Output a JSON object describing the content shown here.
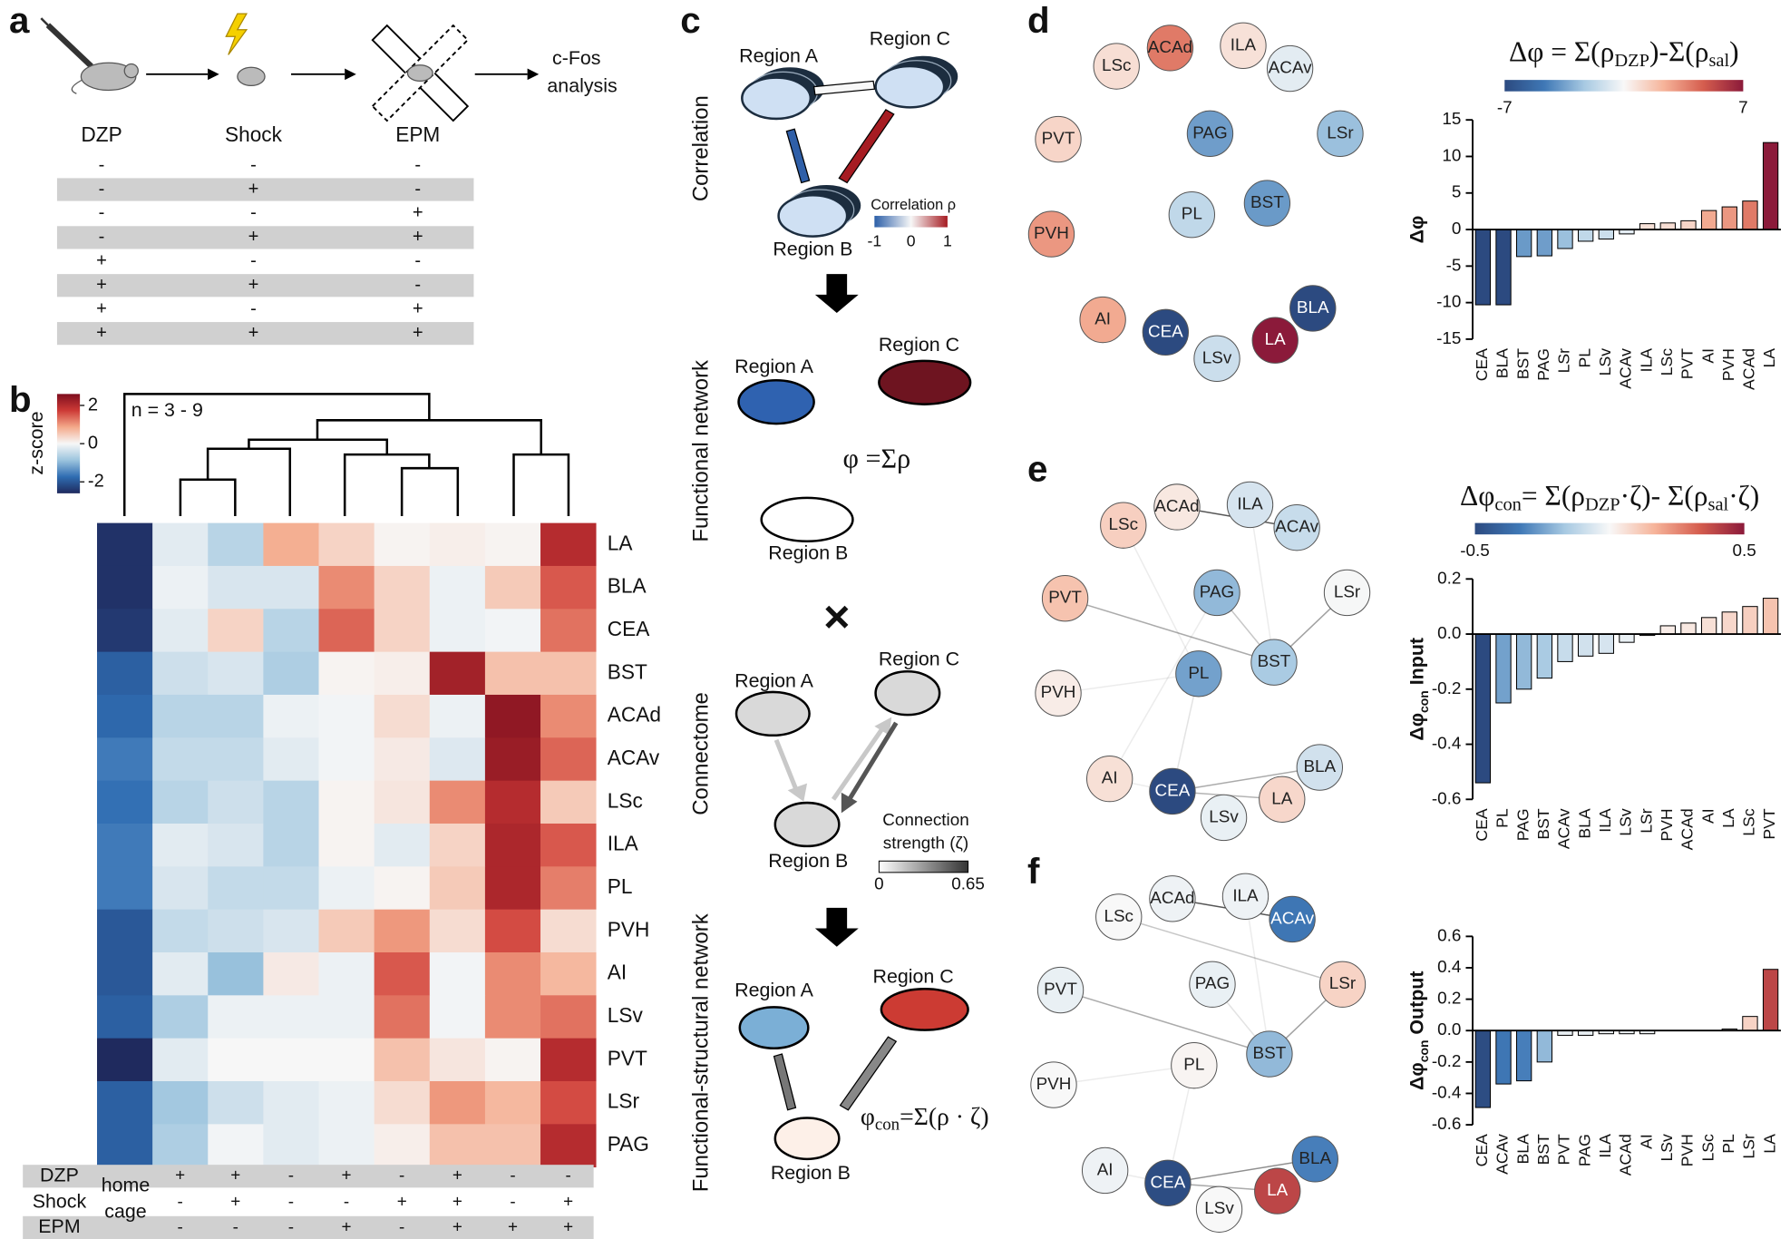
{
  "panel_labels": [
    "a",
    "b",
    "c",
    "d",
    "e",
    "f"
  ],
  "panel_a": {
    "steps": [
      "c-Fos",
      "analysis"
    ],
    "header": [
      "DZP",
      "Shock",
      "EPM"
    ],
    "rows": [
      [
        "-",
        "-",
        "-"
      ],
      [
        "-",
        "+",
        "-"
      ],
      [
        "-",
        "-",
        "+"
      ],
      [
        "-",
        "+",
        "+"
      ],
      [
        "+",
        "-",
        "-"
      ],
      [
        "+",
        "+",
        "-"
      ],
      [
        "+",
        "-",
        "+"
      ],
      [
        "+",
        "+",
        "+"
      ]
    ]
  },
  "panel_c": {
    "section_labels": [
      "Correlation",
      "Functional network",
      "Connectome",
      "Functional-structural network"
    ],
    "region_labels": [
      "Region A",
      "Region B",
      "Region C"
    ],
    "corr_label": "Correlation ρ",
    "corr_ticks": [
      -1,
      0,
      1
    ],
    "phi_formula": "φ =Σρ",
    "operator": "×",
    "strength_label": [
      "Connection",
      "strength (ζ)"
    ],
    "strength_ticks": [
      0,
      0.65
    ],
    "phicon_formula": [
      "φ",
      "con",
      "=Σ(ρ · ζ)"
    ]
  },
  "chart_data": [
    {
      "type": "heatmap",
      "annotation": "n = 3 - 9",
      "colorbar_label": "z-score",
      "zlim": [
        -2.6,
        2.6
      ],
      "zticks": [
        -2,
        0,
        2
      ],
      "colormap": [
        "#1f2a5e",
        "#2f6db2",
        "#9cc4de",
        "#f7f7f7",
        "#f4a98a",
        "#cd3a36",
        "#7e0e1e"
      ],
      "rows": [
        "LA",
        "BLA",
        "CEA",
        "BST",
        "ACAd",
        "ACAv",
        "LSc",
        "ILA",
        "PL",
        "PVH",
        "AI",
        "LSv",
        "PVT",
        "LSr",
        "PAG"
      ],
      "values": [
        [
          -2.5,
          -0.2,
          -0.6,
          0.8,
          0.4,
          0.05,
          0.1,
          0.05,
          2.0
        ],
        [
          -2.5,
          -0.1,
          -0.3,
          -0.3,
          1.1,
          0.4,
          -0.1,
          0.5,
          1.5
        ],
        [
          -2.4,
          -0.2,
          0.4,
          -0.6,
          1.4,
          0.4,
          -0.1,
          -0.05,
          1.3
        ],
        [
          -1.9,
          -0.4,
          -0.3,
          -0.7,
          0.05,
          0.1,
          2.2,
          0.6,
          0.6
        ],
        [
          -1.8,
          -0.6,
          -0.6,
          -0.1,
          -0.05,
          0.3,
          -0.1,
          2.4,
          1.1
        ],
        [
          -1.6,
          -0.5,
          -0.5,
          -0.2,
          -0.05,
          0.15,
          -0.25,
          2.3,
          1.4
        ],
        [
          -1.7,
          -0.6,
          -0.4,
          -0.6,
          0.05,
          0.2,
          1.1,
          2.0,
          0.5
        ],
        [
          -1.6,
          -0.2,
          -0.3,
          -0.6,
          0.05,
          -0.2,
          0.4,
          2.1,
          1.5
        ],
        [
          -1.6,
          -0.3,
          -0.5,
          -0.5,
          -0.1,
          0.05,
          0.5,
          2.1,
          1.2
        ],
        [
          -2.0,
          -0.5,
          -0.4,
          -0.3,
          0.5,
          1.0,
          0.3,
          1.6,
          0.3
        ],
        [
          -2.0,
          -0.2,
          -0.9,
          0.15,
          -0.1,
          1.5,
          -0.05,
          1.1,
          0.7
        ],
        [
          -1.9,
          -0.7,
          -0.1,
          -0.1,
          -0.1,
          1.3,
          -0.05,
          1.1,
          1.3
        ],
        [
          -2.6,
          -0.2,
          0,
          0,
          0,
          0.6,
          0.2,
          0.05,
          2.0
        ],
        [
          -1.9,
          -0.8,
          -0.4,
          -0.2,
          -0.1,
          0.3,
          1.0,
          0.7,
          1.6
        ],
        [
          -1.9,
          -0.7,
          -0.05,
          -0.2,
          -0.1,
          0.1,
          0.6,
          0.6,
          2.0
        ]
      ],
      "condition_names": [
        "DZP",
        "Shock",
        "EPM"
      ],
      "control": [
        "home",
        "cage"
      ],
      "conditions": [
        [
          "+",
          "+",
          "-",
          "+",
          "-",
          "+",
          "-",
          "-"
        ],
        [
          "-",
          "+",
          "-",
          "-",
          "+",
          "+",
          "-",
          "+"
        ],
        [
          "-",
          "-",
          "-",
          "+",
          "-",
          "+",
          "+",
          "+"
        ]
      ]
    },
    {
      "type": "bar",
      "title_parts": [
        "Δφ = Σ(ρ",
        "DZP",
        ")-Σ(ρ",
        "sal",
        ")"
      ],
      "ylabel_parts": [
        "Δφ"
      ],
      "categories": [
        "CEA",
        "BLA",
        "BST",
        "PAG",
        "LSr",
        "PL",
        "LSv",
        "ACAv",
        "ILA",
        "LSc",
        "PVT",
        "AI",
        "PVH",
        "ACAd",
        "LA"
      ],
      "values": [
        -10.3,
        -10.3,
        -3.7,
        -3.6,
        -2.6,
        -1.6,
        -1.3,
        -0.6,
        0.8,
        0.9,
        1.2,
        2.6,
        3.1,
        3.9,
        11.9
      ],
      "ylim": [
        -15,
        15
      ],
      "yticks": [
        -15,
        -10,
        -5,
        0,
        5,
        10,
        15
      ],
      "clim": [
        -7,
        7
      ],
      "cticks": [
        -7,
        7
      ],
      "colormap": [
        "#2c4a80",
        "#3f78b6",
        "#a7c9e2",
        "#f8f8f8",
        "#f6b49a",
        "#d55d4e",
        "#8b1a3a"
      ]
    },
    {
      "type": "bar",
      "title_parts": [
        "Δφ",
        "con",
        "= Σ(ρ",
        "DZP",
        "·ζ)- Σ(ρ",
        "sal",
        "·ζ)"
      ],
      "ylabel_parts": [
        "Δφ",
        "con",
        " Input"
      ],
      "categories": [
        "CEA",
        "PL",
        "PAG",
        "BST",
        "ACAv",
        "BLA",
        "ILA",
        "LSv",
        "LSr",
        "PVH",
        "ACAd",
        "AI",
        "LA",
        "LSc",
        "PVT"
      ],
      "values": [
        -0.54,
        -0.25,
        -0.2,
        -0.16,
        -0.1,
        -0.08,
        -0.07,
        -0.03,
        -0.005,
        0.03,
        0.04,
        0.06,
        0.08,
        0.1,
        0.13
      ],
      "ylim": [
        -0.6,
        0.2
      ],
      "yticks": [
        -0.6,
        -0.4,
        -0.2,
        {
          "value": 0,
          "label": "0.0"
        },
        0.2
      ],
      "clim": [
        -0.5,
        0.5
      ],
      "cticks": [
        -0.5,
        0.5
      ],
      "colormap": [
        "#2c4a80",
        "#3f78b6",
        "#a7c9e2",
        "#f8f8f8",
        "#f6b49a",
        "#d55d4e",
        "#8b1a3a"
      ]
    },
    {
      "type": "bar",
      "ylabel_parts": [
        "Δφ",
        "con",
        " Output"
      ],
      "categories": [
        "CEA",
        "ACAv",
        "BLA",
        "BST",
        "PVT",
        "PAG",
        "ILA",
        "ACAd",
        "AI",
        "LSv",
        "PVH",
        "LSc",
        "PL",
        "LSr",
        "LA"
      ],
      "values": [
        -0.49,
        -0.34,
        -0.32,
        -0.2,
        -0.03,
        -0.03,
        -0.02,
        -0.02,
        -0.02,
        0,
        0,
        0,
        0.01,
        0.09,
        0.39
      ],
      "ylim": [
        -0.6,
        0.6
      ],
      "yticks": [
        -0.6,
        -0.4,
        -0.2,
        {
          "value": 0,
          "label": "0.0"
        },
        0.2,
        0.4,
        0.6
      ]
    }
  ]
}
